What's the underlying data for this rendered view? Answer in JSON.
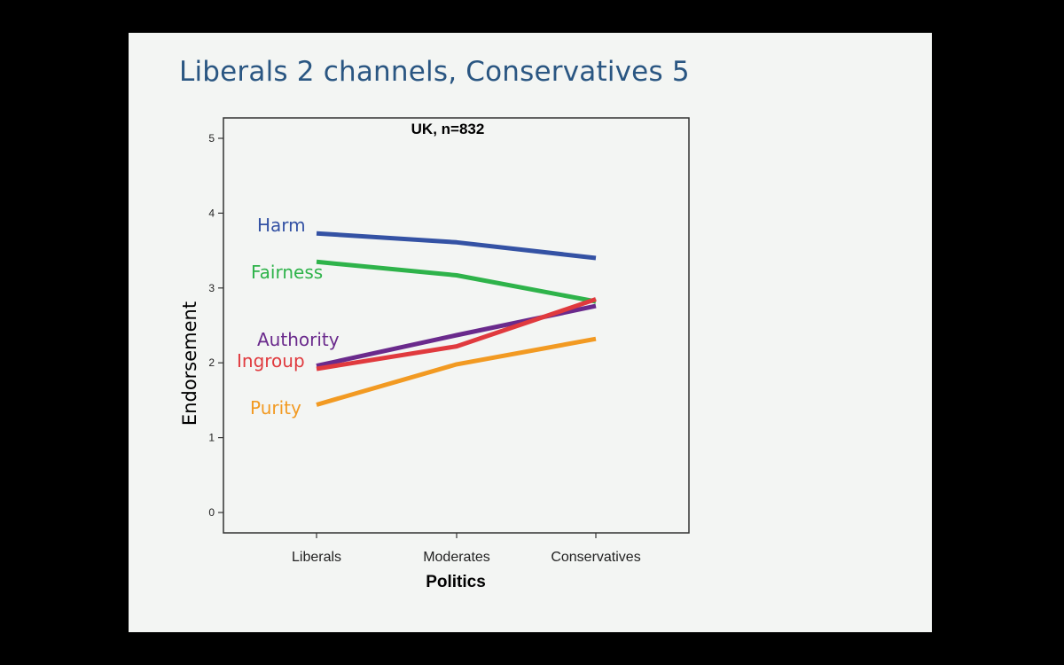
{
  "slide": {
    "title": "Liberals 2 channels, Conservatives 5",
    "background": "#f3f5f3",
    "title_color": "#2a5682"
  },
  "chart_data": {
    "type": "line",
    "title": "UK, n=832",
    "xlabel": "Politics",
    "ylabel": "Endorsement",
    "categories": [
      "Liberals",
      "Moderates",
      "Conservatives"
    ],
    "ylim": [
      0,
      5
    ],
    "yticks": [
      0,
      1,
      2,
      3,
      4,
      5
    ],
    "grid": false,
    "legend": "inline labels at left of lines",
    "series": [
      {
        "name": "Harm",
        "color": "#3452a4",
        "values": [
          3.73,
          3.61,
          3.4
        ]
      },
      {
        "name": "Fairness",
        "color": "#2eb34a",
        "values": [
          3.35,
          3.17,
          2.82
        ]
      },
      {
        "name": "Authority",
        "color": "#6a2a8c",
        "values": [
          1.96,
          2.37,
          2.76
        ]
      },
      {
        "name": "Ingroup",
        "color": "#e03a3e",
        "values": [
          1.92,
          2.22,
          2.85
        ]
      },
      {
        "name": "Purity",
        "color": "#f29a22",
        "values": [
          1.44,
          1.98,
          2.32
        ]
      }
    ]
  }
}
